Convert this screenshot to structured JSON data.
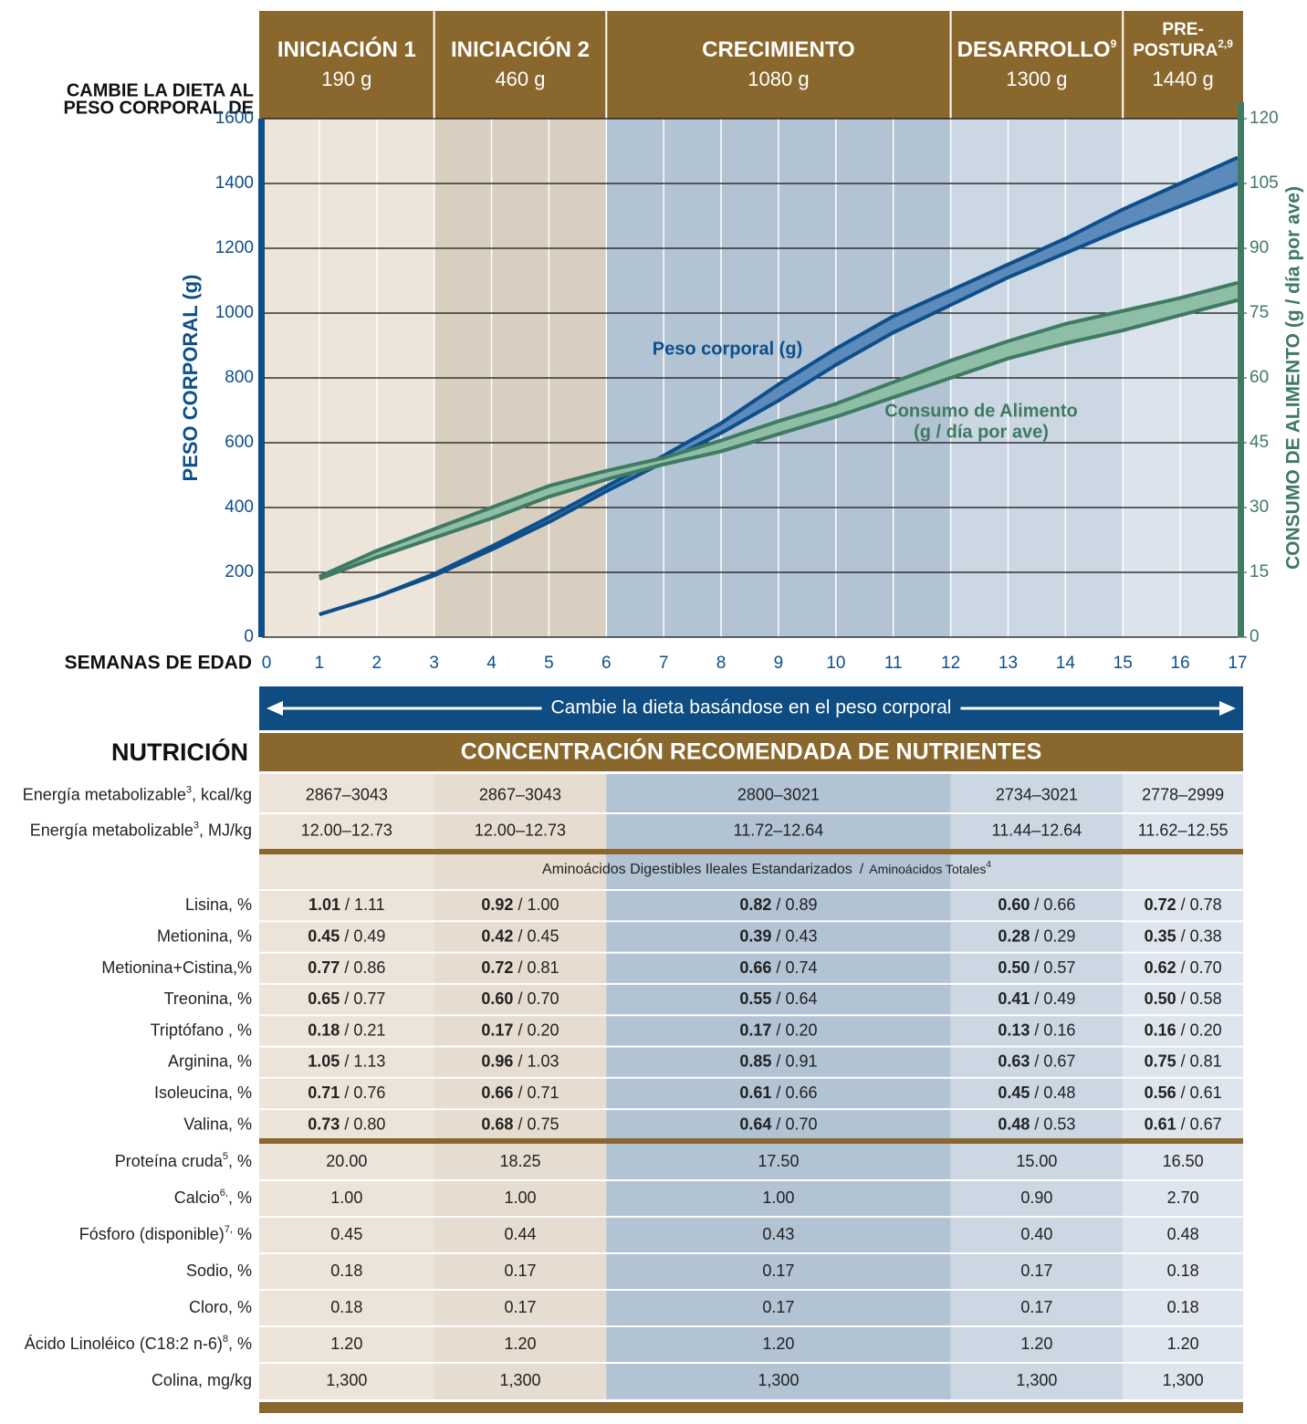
{
  "header": {
    "left_label": [
      "CAMBIE LA DIETA AL",
      "PESO CORPORAL DE"
    ],
    "phases": [
      {
        "name": [
          "INICIACIÓN 1"
        ],
        "weight": "190 g"
      },
      {
        "name": [
          "INICIACIÓN 2"
        ],
        "weight": "460 g"
      },
      {
        "name": [
          "CRECIMIENTO"
        ],
        "weight": "1080 g"
      },
      {
        "name": [
          "DESARROLLO"
        ],
        "sup": "9",
        "weight": "1300 g"
      },
      {
        "name": [
          "PRE-",
          "POSTURA"
        ],
        "sup": "2,9",
        "weight": "1440 g"
      }
    ]
  },
  "chart_data": {
    "type": "band",
    "ylabel": "PESO CORPORAL (g)",
    "y2label": "CONSUMO DE ALIMENTO (g / día por ave)",
    "xlabel": "SEMANAS DE EDAD",
    "x": [
      1,
      2,
      3,
      4,
      5,
      6,
      7,
      8,
      9,
      10,
      11,
      12,
      13,
      14,
      15,
      16,
      17
    ],
    "xlim": [
      0,
      17
    ],
    "xticks": [
      0,
      1,
      2,
      3,
      4,
      5,
      6,
      7,
      8,
      9,
      10,
      11,
      12,
      13,
      14,
      15,
      16,
      17
    ],
    "ylim": [
      0,
      1600
    ],
    "yticks": [
      0,
      200,
      400,
      600,
      800,
      1000,
      1200,
      1400,
      1600
    ],
    "y2lim": [
      0,
      120
    ],
    "y2ticks": [
      0,
      15,
      30,
      45,
      60,
      75,
      90,
      105,
      120
    ],
    "series": [
      {
        "label": [
          "Peso corporal (g)"
        ],
        "color": "#0d4f8b",
        "fill": "#5c8bbb",
        "high": [
          70,
          125,
          195,
          280,
          370,
          465,
          560,
          660,
          780,
          890,
          990,
          1070,
          1150,
          1230,
          1320,
          1400,
          1480
        ],
        "low": [
          70,
          125,
          190,
          270,
          355,
          450,
          540,
          630,
          730,
          840,
          940,
          1025,
          1110,
          1185,
          1260,
          1330,
          1400
        ]
      },
      {
        "label": [
          "Consumo de Alimento",
          "(g / día por ave)"
        ],
        "color": "#3f7a63",
        "fill": "#8fbea6",
        "axis": "y2",
        "high": [
          14,
          20,
          25,
          30,
          35,
          38.5,
          41.5,
          45.5,
          50,
          54,
          59,
          64,
          68.5,
          72.5,
          75.5,
          78.5,
          82
        ],
        "low": [
          13.5,
          18.5,
          23,
          27.5,
          32.5,
          36.5,
          40,
          43,
          47,
          51,
          55.5,
          60,
          64.5,
          68,
          71,
          74.5,
          78
        ]
      }
    ]
  },
  "banner": "Cambie la dieta basándose en el peso corporal",
  "table": {
    "section_label": "NUTRICIÓN",
    "title": "CONCENTRACIÓN RECOMENDADA DE NUTRIENTES",
    "separator": "/",
    "subheader": {
      "main": "Aminoácidos Digestibles Ileales Estandarizados",
      "secondary": "Aminoácidos Totales",
      "sup": "4"
    },
    "energy_rows": [
      {
        "label": [
          "Energía metabolizable",
          "3",
          ", kcal/kg"
        ],
        "cells": [
          "2867–3043",
          "2867–3043",
          "2800–3021",
          "2734–3021",
          "2778–2999"
        ]
      },
      {
        "label": [
          "Energía metabolizable",
          "3",
          ", MJ/kg"
        ],
        "cells": [
          "12.00–12.73",
          "12.00–12.73",
          "11.72–12.64",
          "11.44–12.64",
          "11.62–12.55"
        ]
      }
    ],
    "amino_rows": [
      {
        "label": [
          "Lisina, %"
        ],
        "cells": [
          [
            "1.01",
            "1.11"
          ],
          [
            "0.92",
            "1.00"
          ],
          [
            "0.82",
            "0.89"
          ],
          [
            "0.60",
            "0.66"
          ],
          [
            "0.72",
            "0.78"
          ]
        ]
      },
      {
        "label": [
          "Metionina, %"
        ],
        "cells": [
          [
            "0.45",
            "0.49"
          ],
          [
            "0.42",
            "0.45"
          ],
          [
            "0.39",
            "0.43"
          ],
          [
            "0.28",
            "0.29"
          ],
          [
            "0.35",
            "0.38"
          ]
        ]
      },
      {
        "label": [
          "Metionina+Cistina,%"
        ],
        "cells": [
          [
            "0.77",
            "0.86"
          ],
          [
            "0.72",
            "0.81"
          ],
          [
            "0.66",
            "0.74"
          ],
          [
            "0.50",
            "0.57"
          ],
          [
            "0.62",
            "0.70"
          ]
        ]
      },
      {
        "label": [
          "Treonina, %"
        ],
        "cells": [
          [
            "0.65",
            "0.77"
          ],
          [
            "0.60",
            "0.70"
          ],
          [
            "0.55",
            "0.64"
          ],
          [
            "0.41",
            "0.49"
          ],
          [
            "0.50",
            "0.58"
          ]
        ]
      },
      {
        "label": [
          "Triptófano , %"
        ],
        "cells": [
          [
            "0.18",
            "0.21"
          ],
          [
            "0.17",
            "0.20"
          ],
          [
            "0.17",
            "0.20"
          ],
          [
            "0.13",
            "0.16"
          ],
          [
            "0.16",
            "0.20"
          ]
        ]
      },
      {
        "label": [
          "Arginina, %"
        ],
        "cells": [
          [
            "1.05",
            "1.13"
          ],
          [
            "0.96",
            "1.03"
          ],
          [
            "0.85",
            "0.91"
          ],
          [
            "0.63",
            "0.67"
          ],
          [
            "0.75",
            "0.81"
          ]
        ]
      },
      {
        "label": [
          "Isoleucina, %"
        ],
        "cells": [
          [
            "0.71",
            "0.76"
          ],
          [
            "0.66",
            "0.71"
          ],
          [
            "0.61",
            "0.66"
          ],
          [
            "0.45",
            "0.48"
          ],
          [
            "0.56",
            "0.61"
          ]
        ]
      },
      {
        "label": [
          "Valina, %"
        ],
        "cells": [
          [
            "0.73",
            "0.80"
          ],
          [
            "0.68",
            "0.75"
          ],
          [
            "0.64",
            "0.70"
          ],
          [
            "0.48",
            "0.53"
          ],
          [
            "0.61",
            "0.67"
          ]
        ]
      }
    ],
    "other_rows": [
      {
        "label": [
          "Proteína cruda",
          "5",
          ", %"
        ],
        "cells": [
          "20.00",
          "18.25",
          "17.50",
          "15.00",
          "16.50"
        ]
      },
      {
        "label": [
          "Calcio",
          "6,",
          ", %"
        ],
        "cells": [
          "1.00",
          "1.00",
          "1.00",
          "0.90",
          "2.70"
        ]
      },
      {
        "label": [
          "Fósforo (disponible)",
          "7,",
          " %"
        ],
        "cells": [
          "0.45",
          "0.44",
          "0.43",
          "0.40",
          "0.48"
        ]
      },
      {
        "label": [
          "Sodio, %"
        ],
        "cells": [
          "0.18",
          "0.17",
          "0.17",
          "0.17",
          "0.18"
        ]
      },
      {
        "label": [
          "Cloro, %"
        ],
        "cells": [
          "0.18",
          "0.17",
          "0.17",
          "0.17",
          "0.18"
        ]
      },
      {
        "label": [
          "Ácido Linoléico (C18:2 n-6)",
          "8",
          ", %"
        ],
        "cells": [
          "1.20",
          "1.20",
          "1.20",
          "1.20",
          "1.20"
        ]
      },
      {
        "label": [
          "Colina, mg/kg"
        ],
        "cells": [
          "1,300",
          "1,300",
          "1,300",
          "1,300",
          "1,300"
        ]
      }
    ]
  }
}
